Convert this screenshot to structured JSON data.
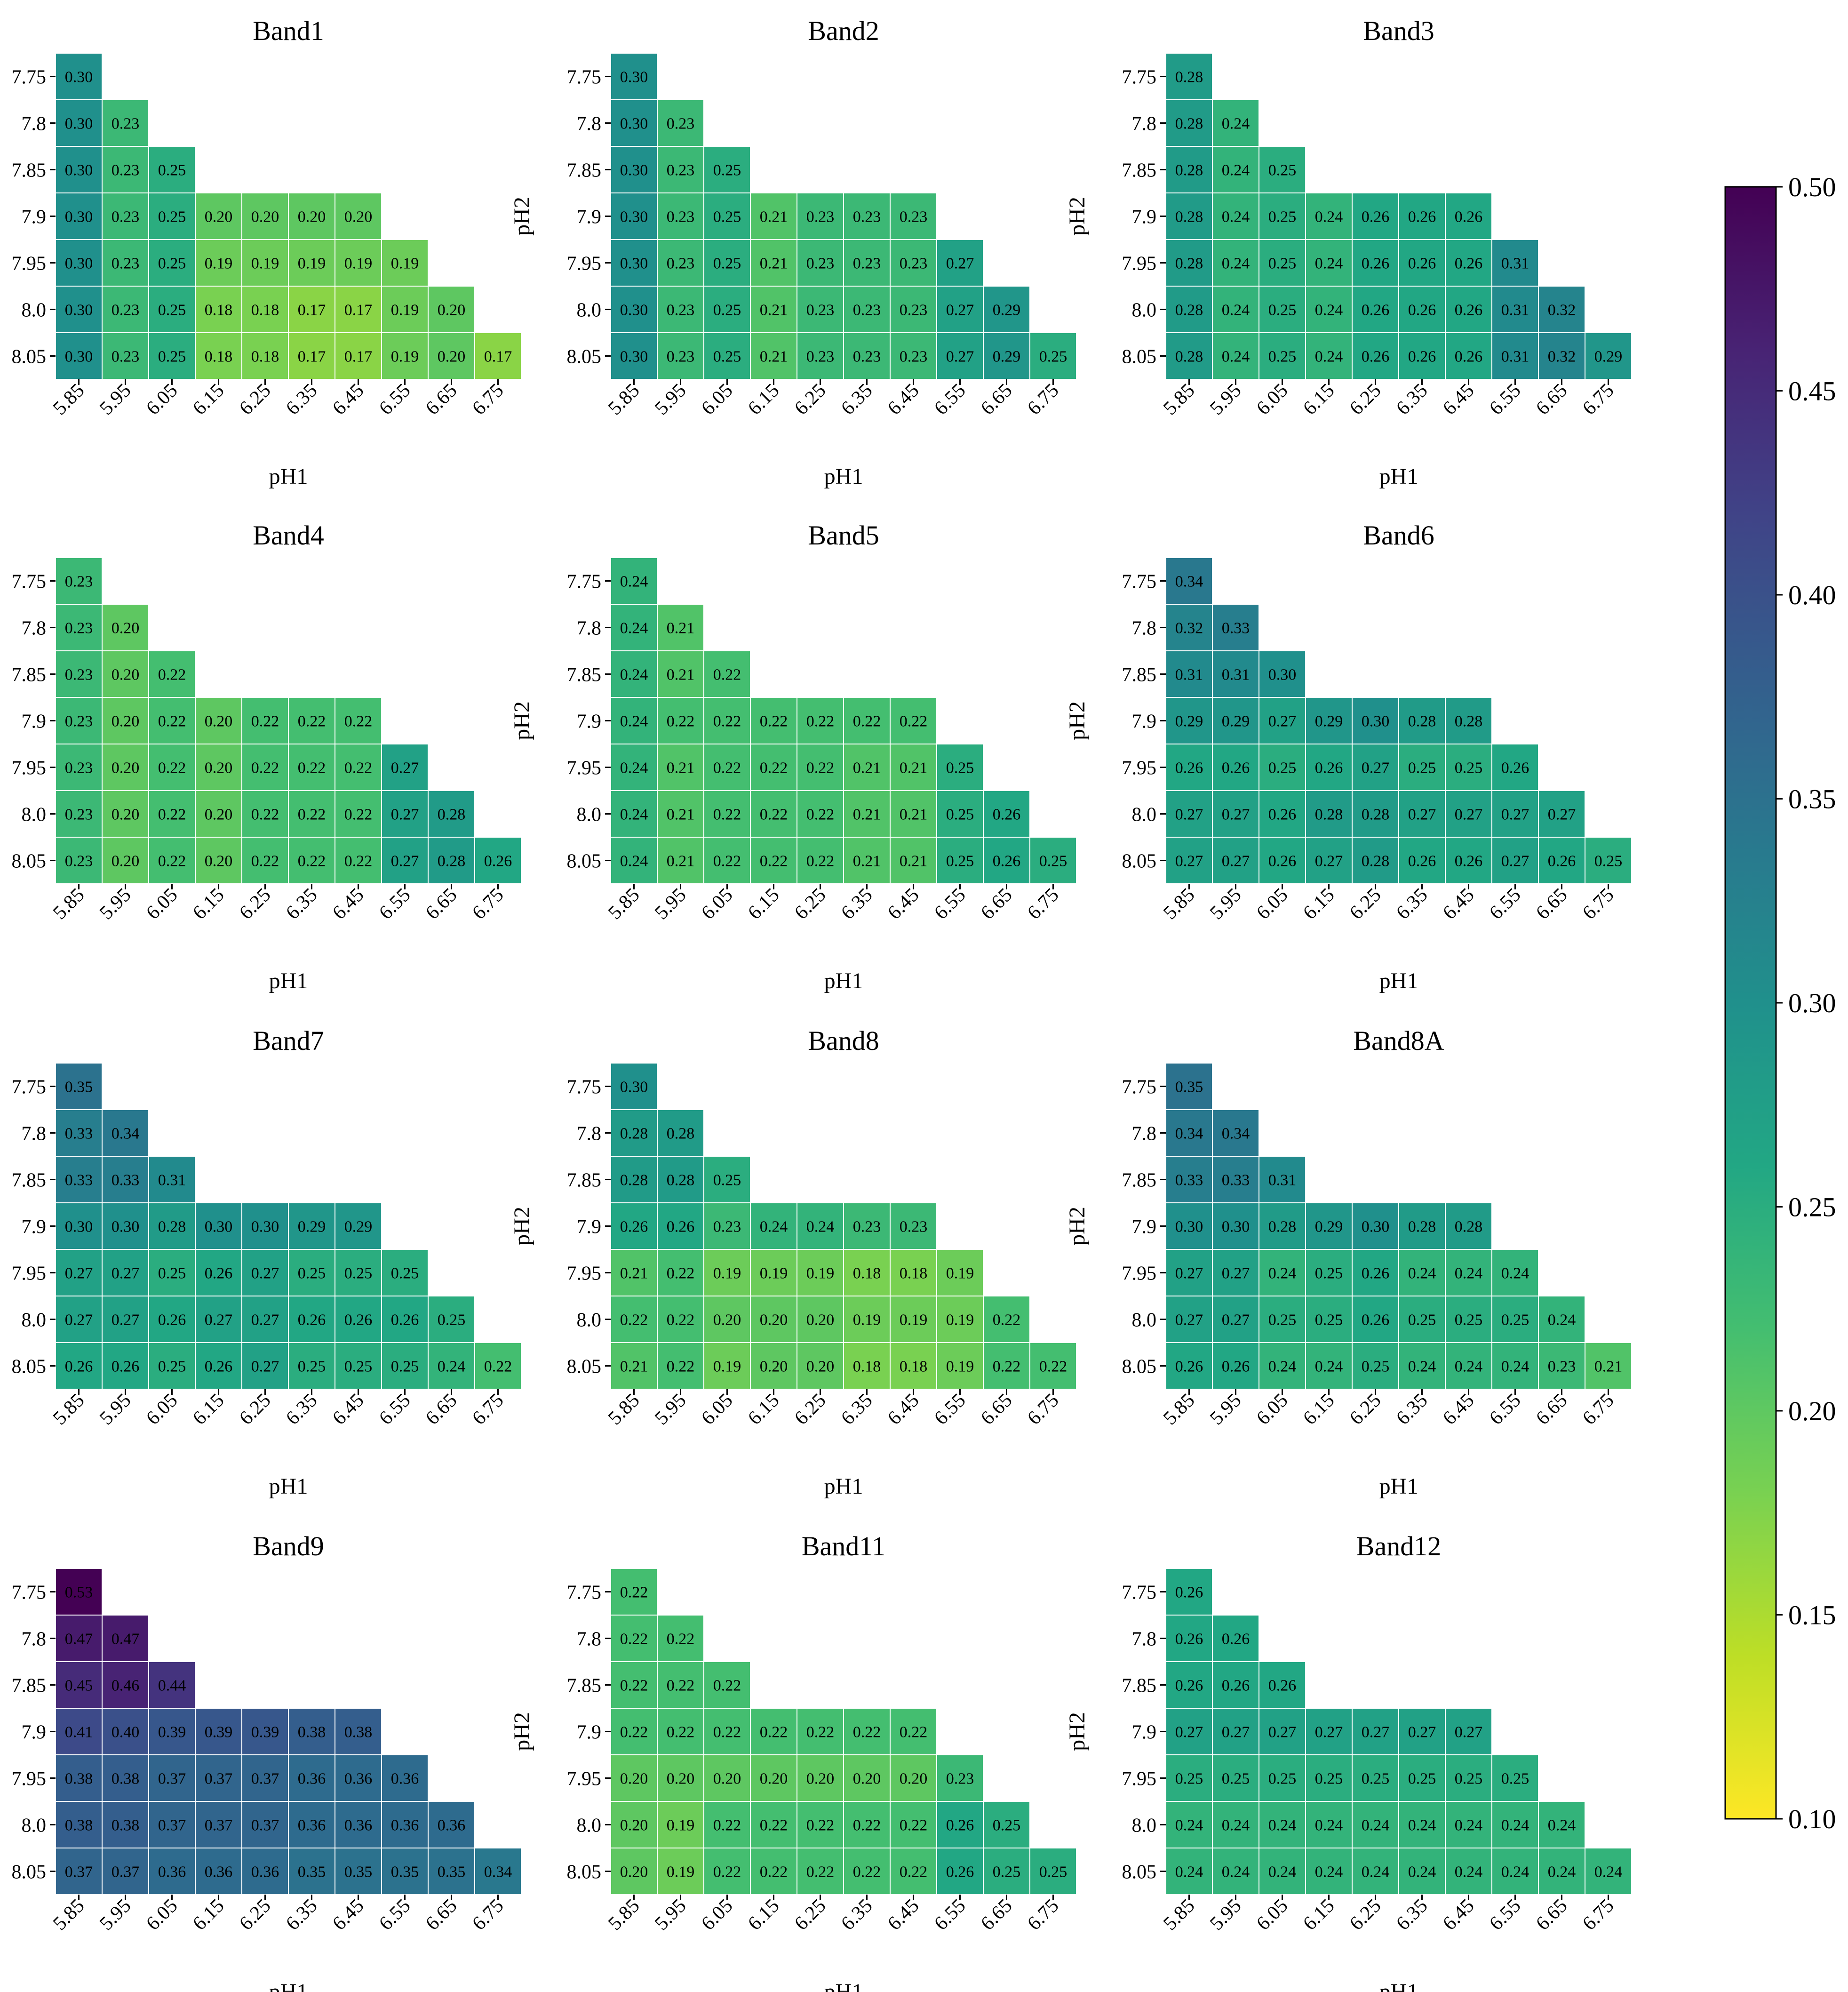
{
  "chart_data": {
    "type": "heatmap",
    "x_categories": [
      "5.85",
      "5.95",
      "6.05",
      "6.15",
      "6.25",
      "6.35",
      "6.45",
      "6.55",
      "6.65",
      "6.75"
    ],
    "y_categories": [
      "7.75",
      "7.8",
      "7.85",
      "7.9",
      "7.95",
      "8.0",
      "8.05"
    ],
    "row_lengths": [
      1,
      2,
      3,
      7,
      8,
      9,
      10
    ],
    "xlabel": "pH1",
    "ylabel": "pH2",
    "colormap": "viridis",
    "colorbar": {
      "min": 0.1,
      "max": 0.5,
      "reversed": true,
      "ticks": [
        "0.10",
        "0.15",
        "0.20",
        "0.25",
        "0.30",
        "0.35",
        "0.40",
        "0.45",
        "0.50"
      ]
    },
    "panels": [
      {
        "title": "Band1",
        "values": [
          [
            "0.30"
          ],
          [
            "0.30",
            "0.23"
          ],
          [
            "0.30",
            "0.23",
            "0.25"
          ],
          [
            "0.30",
            "0.23",
            "0.25",
            "0.20",
            "0.20",
            "0.20",
            "0.20"
          ],
          [
            "0.30",
            "0.23",
            "0.25",
            "0.19",
            "0.19",
            "0.19",
            "0.19",
            "0.19"
          ],
          [
            "0.30",
            "0.23",
            "0.25",
            "0.18",
            "0.18",
            "0.17",
            "0.17",
            "0.19",
            "0.20"
          ],
          [
            "0.30",
            "0.23",
            "0.25",
            "0.18",
            "0.18",
            "0.17",
            "0.17",
            "0.19",
            "0.20",
            "0.17"
          ]
        ]
      },
      {
        "title": "Band2",
        "values": [
          [
            "0.30"
          ],
          [
            "0.30",
            "0.23"
          ],
          [
            "0.30",
            "0.23",
            "0.25"
          ],
          [
            "0.30",
            "0.23",
            "0.25",
            "0.21",
            "0.23",
            "0.23",
            "0.23"
          ],
          [
            "0.30",
            "0.23",
            "0.25",
            "0.21",
            "0.23",
            "0.23",
            "0.23",
            "0.27"
          ],
          [
            "0.30",
            "0.23",
            "0.25",
            "0.21",
            "0.23",
            "0.23",
            "0.23",
            "0.27",
            "0.29"
          ],
          [
            "0.30",
            "0.23",
            "0.25",
            "0.21",
            "0.23",
            "0.23",
            "0.23",
            "0.27",
            "0.29",
            "0.25"
          ]
        ]
      },
      {
        "title": "Band3",
        "values": [
          [
            "0.28"
          ],
          [
            "0.28",
            "0.24"
          ],
          [
            "0.28",
            "0.24",
            "0.25"
          ],
          [
            "0.28",
            "0.24",
            "0.25",
            "0.24",
            "0.26",
            "0.26",
            "0.26"
          ],
          [
            "0.28",
            "0.24",
            "0.25",
            "0.24",
            "0.26",
            "0.26",
            "0.26",
            "0.31"
          ],
          [
            "0.28",
            "0.24",
            "0.25",
            "0.24",
            "0.26",
            "0.26",
            "0.26",
            "0.31",
            "0.32"
          ],
          [
            "0.28",
            "0.24",
            "0.25",
            "0.24",
            "0.26",
            "0.26",
            "0.26",
            "0.31",
            "0.32",
            "0.29"
          ]
        ]
      },
      {
        "title": "Band4",
        "values": [
          [
            "0.23"
          ],
          [
            "0.23",
            "0.20"
          ],
          [
            "0.23",
            "0.20",
            "0.22"
          ],
          [
            "0.23",
            "0.20",
            "0.22",
            "0.20",
            "0.22",
            "0.22",
            "0.22"
          ],
          [
            "0.23",
            "0.20",
            "0.22",
            "0.20",
            "0.22",
            "0.22",
            "0.22",
            "0.27"
          ],
          [
            "0.23",
            "0.20",
            "0.22",
            "0.20",
            "0.22",
            "0.22",
            "0.22",
            "0.27",
            "0.28"
          ],
          [
            "0.23",
            "0.20",
            "0.22",
            "0.20",
            "0.22",
            "0.22",
            "0.22",
            "0.27",
            "0.28",
            "0.26"
          ]
        ]
      },
      {
        "title": "Band5",
        "values": [
          [
            "0.24"
          ],
          [
            "0.24",
            "0.21"
          ],
          [
            "0.24",
            "0.21",
            "0.22"
          ],
          [
            "0.24",
            "0.22",
            "0.22",
            "0.22",
            "0.22",
            "0.22",
            "0.22"
          ],
          [
            "0.24",
            "0.21",
            "0.22",
            "0.22",
            "0.22",
            "0.21",
            "0.21",
            "0.25"
          ],
          [
            "0.24",
            "0.21",
            "0.22",
            "0.22",
            "0.22",
            "0.21",
            "0.21",
            "0.25",
            "0.26"
          ],
          [
            "0.24",
            "0.21",
            "0.22",
            "0.22",
            "0.22",
            "0.21",
            "0.21",
            "0.25",
            "0.26",
            "0.25"
          ]
        ]
      },
      {
        "title": "Band6",
        "values": [
          [
            "0.34"
          ],
          [
            "0.32",
            "0.33"
          ],
          [
            "0.31",
            "0.31",
            "0.30"
          ],
          [
            "0.29",
            "0.29",
            "0.27",
            "0.29",
            "0.30",
            "0.28",
            "0.28"
          ],
          [
            "0.26",
            "0.26",
            "0.25",
            "0.26",
            "0.27",
            "0.25",
            "0.25",
            "0.26"
          ],
          [
            "0.27",
            "0.27",
            "0.26",
            "0.28",
            "0.28",
            "0.27",
            "0.27",
            "0.27",
            "0.27"
          ],
          [
            "0.27",
            "0.27",
            "0.26",
            "0.27",
            "0.28",
            "0.26",
            "0.26",
            "0.27",
            "0.26",
            "0.25"
          ]
        ]
      },
      {
        "title": "Band7",
        "values": [
          [
            "0.35"
          ],
          [
            "0.33",
            "0.34"
          ],
          [
            "0.33",
            "0.33",
            "0.31"
          ],
          [
            "0.30",
            "0.30",
            "0.28",
            "0.30",
            "0.30",
            "0.29",
            "0.29"
          ],
          [
            "0.27",
            "0.27",
            "0.25",
            "0.26",
            "0.27",
            "0.25",
            "0.25",
            "0.25"
          ],
          [
            "0.27",
            "0.27",
            "0.26",
            "0.27",
            "0.27",
            "0.26",
            "0.26",
            "0.26",
            "0.25"
          ],
          [
            "0.26",
            "0.26",
            "0.25",
            "0.26",
            "0.27",
            "0.25",
            "0.25",
            "0.25",
            "0.24",
            "0.22"
          ]
        ]
      },
      {
        "title": "Band8",
        "values": [
          [
            "0.30"
          ],
          [
            "0.28",
            "0.28"
          ],
          [
            "0.28",
            "0.28",
            "0.25"
          ],
          [
            "0.26",
            "0.26",
            "0.23",
            "0.24",
            "0.24",
            "0.23",
            "0.23"
          ],
          [
            "0.21",
            "0.22",
            "0.19",
            "0.19",
            "0.19",
            "0.18",
            "0.18",
            "0.19"
          ],
          [
            "0.22",
            "0.22",
            "0.20",
            "0.20",
            "0.20",
            "0.19",
            "0.19",
            "0.19",
            "0.22"
          ],
          [
            "0.21",
            "0.22",
            "0.19",
            "0.20",
            "0.20",
            "0.18",
            "0.18",
            "0.19",
            "0.22",
            "0.22"
          ]
        ]
      },
      {
        "title": "Band8A",
        "values": [
          [
            "0.35"
          ],
          [
            "0.34",
            "0.34"
          ],
          [
            "0.33",
            "0.33",
            "0.31"
          ],
          [
            "0.30",
            "0.30",
            "0.28",
            "0.29",
            "0.30",
            "0.28",
            "0.28"
          ],
          [
            "0.27",
            "0.27",
            "0.24",
            "0.25",
            "0.26",
            "0.24",
            "0.24",
            "0.24"
          ],
          [
            "0.27",
            "0.27",
            "0.25",
            "0.25",
            "0.26",
            "0.25",
            "0.25",
            "0.25",
            "0.24"
          ],
          [
            "0.26",
            "0.26",
            "0.24",
            "0.24",
            "0.25",
            "0.24",
            "0.24",
            "0.24",
            "0.23",
            "0.21"
          ]
        ]
      },
      {
        "title": "Band9",
        "values": [
          [
            "0.53"
          ],
          [
            "0.47",
            "0.47"
          ],
          [
            "0.45",
            "0.46",
            "0.44"
          ],
          [
            "0.41",
            "0.40",
            "0.39",
            "0.39",
            "0.39",
            "0.38",
            "0.38"
          ],
          [
            "0.38",
            "0.38",
            "0.37",
            "0.37",
            "0.37",
            "0.36",
            "0.36",
            "0.36"
          ],
          [
            "0.38",
            "0.38",
            "0.37",
            "0.37",
            "0.37",
            "0.36",
            "0.36",
            "0.36",
            "0.36"
          ],
          [
            "0.37",
            "0.37",
            "0.36",
            "0.36",
            "0.36",
            "0.35",
            "0.35",
            "0.35",
            "0.35",
            "0.34"
          ]
        ]
      },
      {
        "title": "Band11",
        "values": [
          [
            "0.22"
          ],
          [
            "0.22",
            "0.22"
          ],
          [
            "0.22",
            "0.22",
            "0.22"
          ],
          [
            "0.22",
            "0.22",
            "0.22",
            "0.22",
            "0.22",
            "0.22",
            "0.22"
          ],
          [
            "0.20",
            "0.20",
            "0.20",
            "0.20",
            "0.20",
            "0.20",
            "0.20",
            "0.23"
          ],
          [
            "0.20",
            "0.19",
            "0.22",
            "0.22",
            "0.22",
            "0.22",
            "0.22",
            "0.26",
            "0.25"
          ],
          [
            "0.20",
            "0.19",
            "0.22",
            "0.22",
            "0.22",
            "0.22",
            "0.22",
            "0.26",
            "0.25",
            "0.25"
          ]
        ]
      },
      {
        "title": "Band12",
        "values": [
          [
            "0.26"
          ],
          [
            "0.26",
            "0.26"
          ],
          [
            "0.26",
            "0.26",
            "0.26"
          ],
          [
            "0.27",
            "0.27",
            "0.27",
            "0.27",
            "0.27",
            "0.27",
            "0.27"
          ],
          [
            "0.25",
            "0.25",
            "0.25",
            "0.25",
            "0.25",
            "0.25",
            "0.25",
            "0.25"
          ],
          [
            "0.24",
            "0.24",
            "0.24",
            "0.24",
            "0.24",
            "0.24",
            "0.24",
            "0.24",
            "0.24"
          ],
          [
            "0.24",
            "0.24",
            "0.24",
            "0.24",
            "0.24",
            "0.24",
            "0.24",
            "0.24",
            "0.24",
            "0.24"
          ]
        ]
      }
    ]
  }
}
